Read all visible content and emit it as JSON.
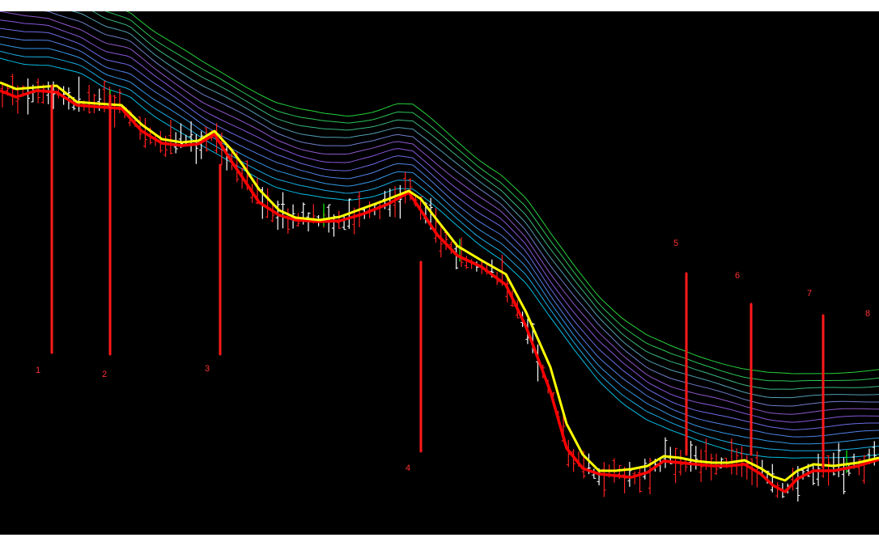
{
  "chart_data": {
    "type": "line",
    "title": "",
    "xlabel": "",
    "ylabel": "",
    "grid": false,
    "legend": "none",
    "background": "#000000",
    "x_range": [
      0,
      1086
    ],
    "y_range": [
      0,
      647
    ],
    "y_inverted": true,
    "colors": {
      "fast_ma": "#ffff00",
      "slow_ma": "#ff0000",
      "ribbon": [
        "#00d4ff",
        "#1ec0ff",
        "#3ca8ff",
        "#5a90ff",
        "#7878ff",
        "#9660f0",
        "#a060e0",
        "#7c8ce0",
        "#5cb0c8",
        "#40cc90",
        "#30dc60",
        "#28e840"
      ],
      "bar_up": "#ffffff",
      "bar_down": "#ff2020",
      "bar_green": "#00ff00",
      "marker": "#ff1a1a",
      "marker_label": "#ff3030"
    },
    "fast_ma": [
      [
        0,
        88
      ],
      [
        20,
        96
      ],
      [
        45,
        94
      ],
      [
        70,
        92
      ],
      [
        95,
        112
      ],
      [
        120,
        114
      ],
      [
        150,
        116
      ],
      [
        175,
        140
      ],
      [
        200,
        158
      ],
      [
        225,
        162
      ],
      [
        245,
        160
      ],
      [
        265,
        148
      ],
      [
        285,
        170
      ],
      [
        300,
        190
      ],
      [
        320,
        220
      ],
      [
        345,
        246
      ],
      [
        365,
        255
      ],
      [
        395,
        258
      ],
      [
        420,
        254
      ],
      [
        450,
        243
      ],
      [
        480,
        232
      ],
      [
        505,
        222
      ],
      [
        520,
        232
      ],
      [
        540,
        258
      ],
      [
        565,
        290
      ],
      [
        595,
        308
      ],
      [
        625,
        325
      ],
      [
        650,
        372
      ],
      [
        680,
        440
      ],
      [
        700,
        510
      ],
      [
        720,
        548
      ],
      [
        740,
        568
      ],
      [
        760,
        568
      ],
      [
        780,
        566
      ],
      [
        800,
        562
      ],
      [
        820,
        550
      ],
      [
        840,
        552
      ],
      [
        860,
        556
      ],
      [
        880,
        558
      ],
      [
        900,
        558
      ],
      [
        920,
        555
      ],
      [
        940,
        565
      ],
      [
        955,
        575
      ],
      [
        970,
        580
      ],
      [
        985,
        568
      ],
      [
        1005,
        560
      ],
      [
        1030,
        562
      ],
      [
        1060,
        558
      ],
      [
        1086,
        552
      ]
    ],
    "slow_ma": [
      [
        0,
        98
      ],
      [
        20,
        106
      ],
      [
        45,
        98
      ],
      [
        70,
        100
      ],
      [
        95,
        116
      ],
      [
        120,
        118
      ],
      [
        150,
        120
      ],
      [
        175,
        148
      ],
      [
        200,
        163
      ],
      [
        225,
        166
      ],
      [
        245,
        164
      ],
      [
        265,
        152
      ],
      [
        285,
        184
      ],
      [
        300,
        206
      ],
      [
        320,
        236
      ],
      [
        345,
        252
      ],
      [
        365,
        258
      ],
      [
        395,
        260
      ],
      [
        420,
        259
      ],
      [
        450,
        250
      ],
      [
        480,
        238
      ],
      [
        505,
        224
      ],
      [
        520,
        246
      ],
      [
        540,
        276
      ],
      [
        565,
        302
      ],
      [
        595,
        316
      ],
      [
        625,
        338
      ],
      [
        650,
        390
      ],
      [
        680,
        470
      ],
      [
        700,
        540
      ],
      [
        720,
        565
      ],
      [
        740,
        572
      ],
      [
        760,
        574
      ],
      [
        780,
        576
      ],
      [
        800,
        570
      ],
      [
        820,
        556
      ],
      [
        840,
        558
      ],
      [
        860,
        560
      ],
      [
        880,
        562
      ],
      [
        900,
        562
      ],
      [
        920,
        560
      ],
      [
        940,
        572
      ],
      [
        955,
        586
      ],
      [
        970,
        594
      ],
      [
        985,
        578
      ],
      [
        1005,
        568
      ],
      [
        1030,
        568
      ],
      [
        1060,
        562
      ],
      [
        1086,
        554
      ]
    ],
    "ribbon_base": [
      [
        0,
        58
      ],
      [
        30,
        64
      ],
      [
        60,
        66
      ],
      [
        100,
        78
      ],
      [
        130,
        96
      ],
      [
        160,
        104
      ],
      [
        190,
        128
      ],
      [
        220,
        148
      ],
      [
        250,
        168
      ],
      [
        280,
        184
      ],
      [
        310,
        200
      ],
      [
        340,
        216
      ],
      [
        370,
        226
      ],
      [
        400,
        232
      ],
      [
        430,
        234
      ],
      [
        460,
        228
      ],
      [
        490,
        218
      ],
      [
        510,
        220
      ],
      [
        530,
        236
      ],
      [
        560,
        262
      ],
      [
        590,
        286
      ],
      [
        620,
        306
      ],
      [
        650,
        336
      ],
      [
        680,
        380
      ],
      [
        710,
        420
      ],
      [
        740,
        456
      ],
      [
        770,
        484
      ],
      [
        800,
        506
      ],
      [
        830,
        520
      ],
      [
        860,
        530
      ],
      [
        890,
        538
      ],
      [
        920,
        546
      ],
      [
        950,
        552
      ],
      [
        980,
        554
      ],
      [
        1010,
        552
      ],
      [
        1040,
        550
      ],
      [
        1086,
        548
      ]
    ],
    "ribbon_spacing": 9.5,
    "markers": [
      {
        "label": "1",
        "bar_top": 92,
        "bar_bottom": 422
      },
      {
        "label": "2",
        "bar_top": 104,
        "bar_bottom": 424
      },
      {
        "label": "3",
        "bar_top": 190,
        "bar_bottom": 424
      },
      {
        "label": "4",
        "bar_top": 310,
        "bar_bottom": 544
      },
      {
        "label": "5",
        "bar_top": 324,
        "bar_bottom": 548
      },
      {
        "label": "6",
        "bar_top": 362,
        "bar_bottom": 548
      },
      {
        "label": "7",
        "bar_top": 376,
        "bar_bottom": 564
      },
      {
        "label": "8",
        "bar_top": null,
        "bar_bottom": null
      }
    ]
  }
}
